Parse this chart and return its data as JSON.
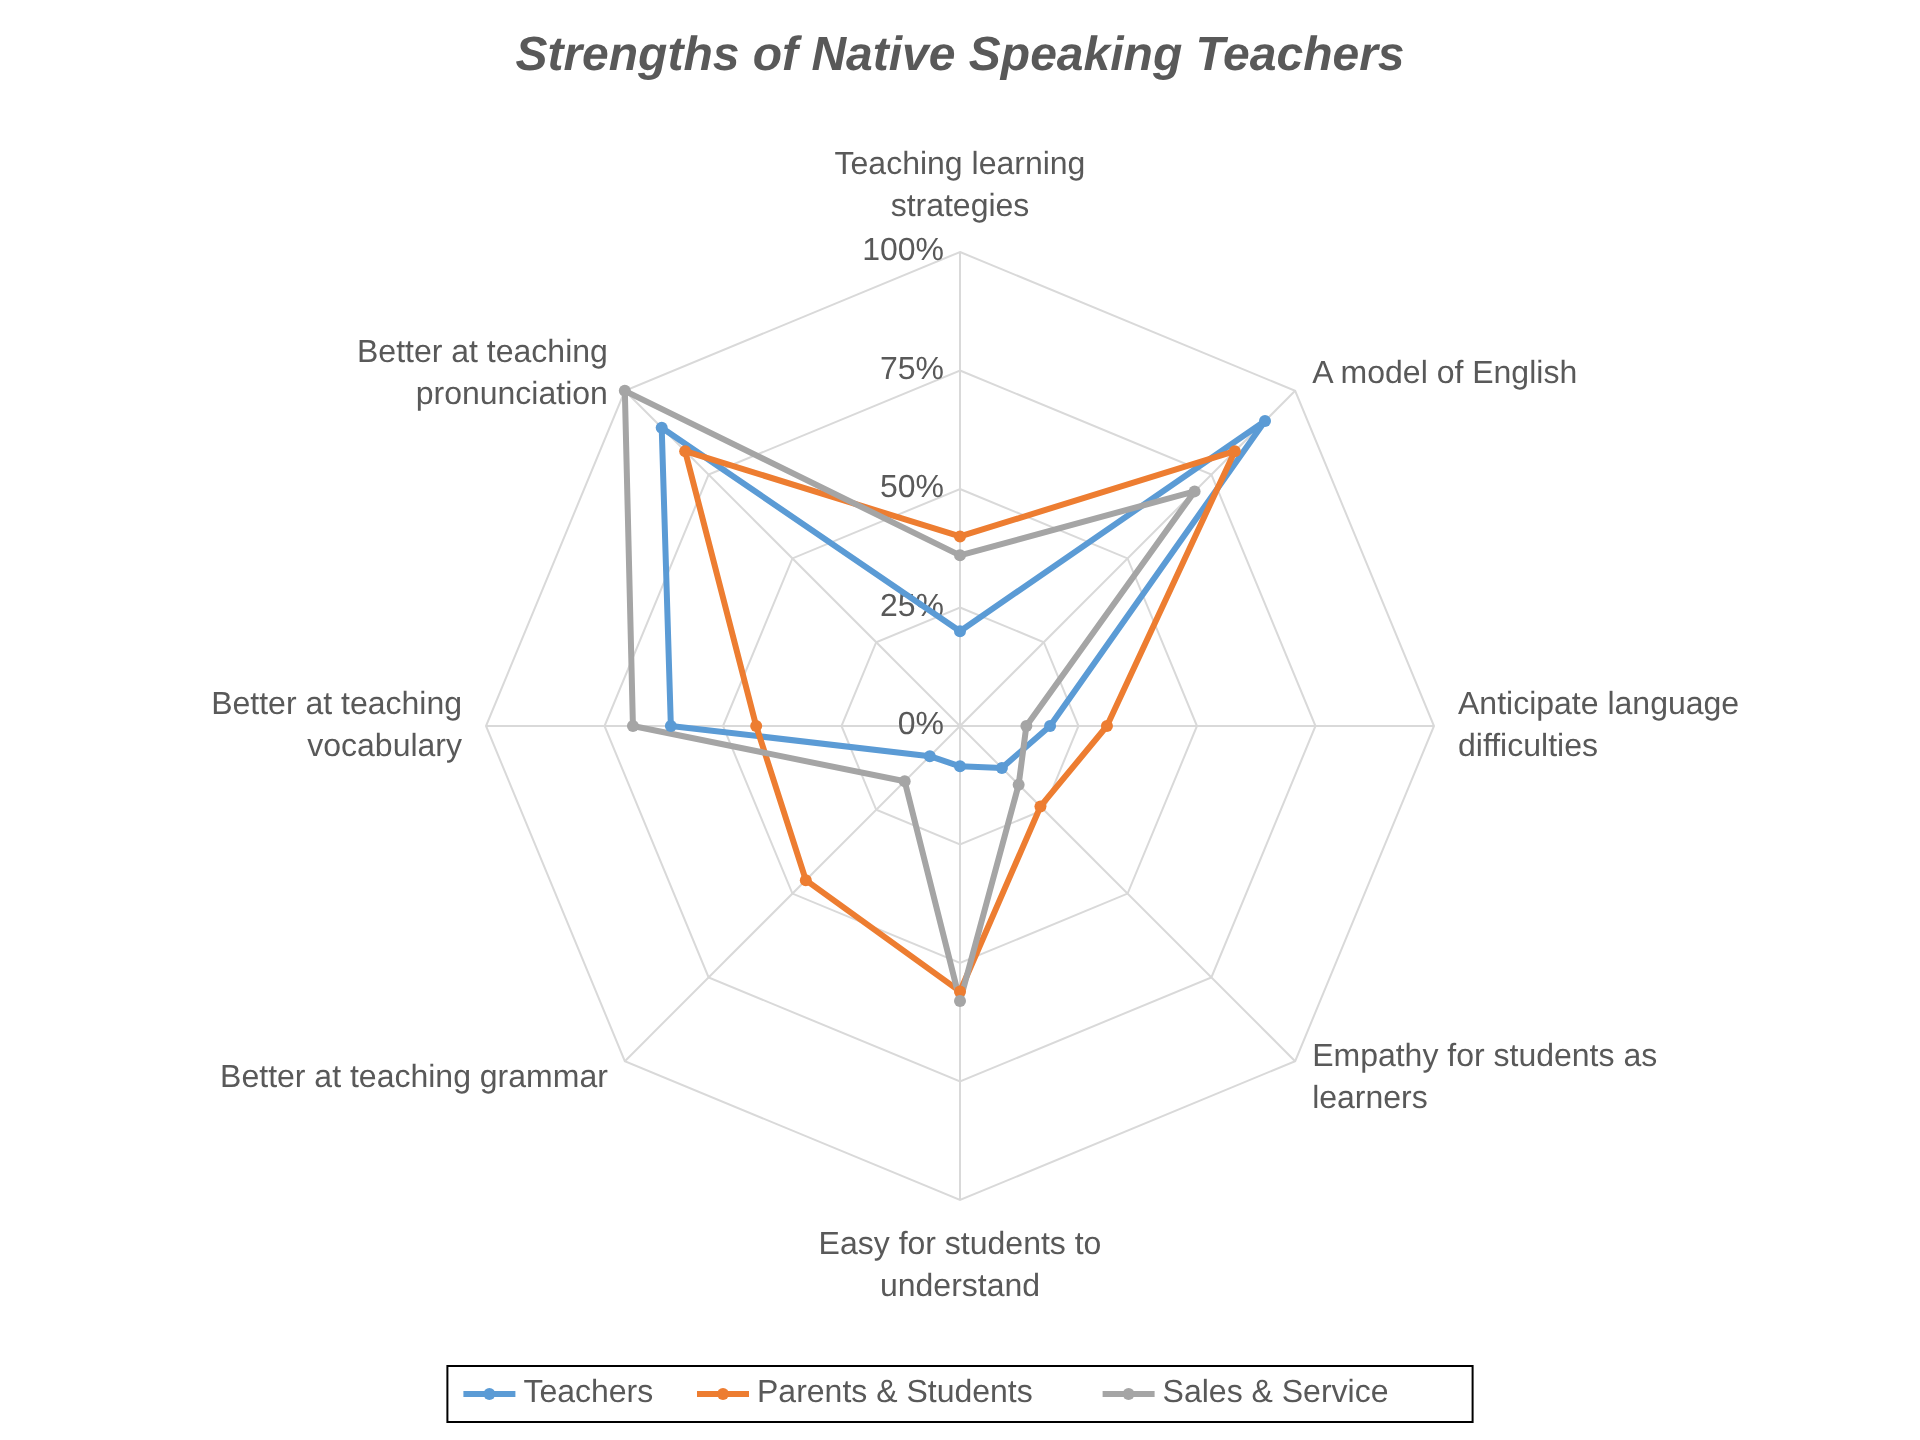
{
  "chart_data": {
    "type": "radar",
    "title": "Strengths of Native Speaking Teachers",
    "categories": [
      "Teaching learning strategies",
      "A model of English",
      "Anticipate language difficulties",
      "Empathy for students as learners",
      "Easy for students to understand",
      "Better at teaching grammar",
      "Better at teaching vocabulary",
      "Better at teaching pronunciation"
    ],
    "series": [
      {
        "name": "Teachers",
        "color": "#5b9bd5",
        "values": [
          20,
          91,
          19,
          12.5,
          8.5,
          9,
          61,
          89
        ]
      },
      {
        "name": "Parents & Students",
        "color": "#ed7d31",
        "values": [
          40,
          82,
          31,
          24,
          56,
          46,
          43,
          82
        ]
      },
      {
        "name": "Sales & Service",
        "color": "#a5a5a5",
        "values": [
          36,
          70,
          14,
          17.5,
          58,
          16.5,
          69,
          100
        ]
      }
    ],
    "ylim": [
      0,
      100
    ],
    "yticks": [
      {
        "value": 0,
        "label": "0%"
      },
      {
        "value": 25,
        "label": "25%"
      },
      {
        "value": 50,
        "label": "50%"
      },
      {
        "value": 75,
        "label": "75%"
      },
      {
        "value": 100,
        "label": "100%"
      }
    ],
    "grid": true,
    "legend": "bottom",
    "marker": "circle",
    "line_style": "solid"
  }
}
